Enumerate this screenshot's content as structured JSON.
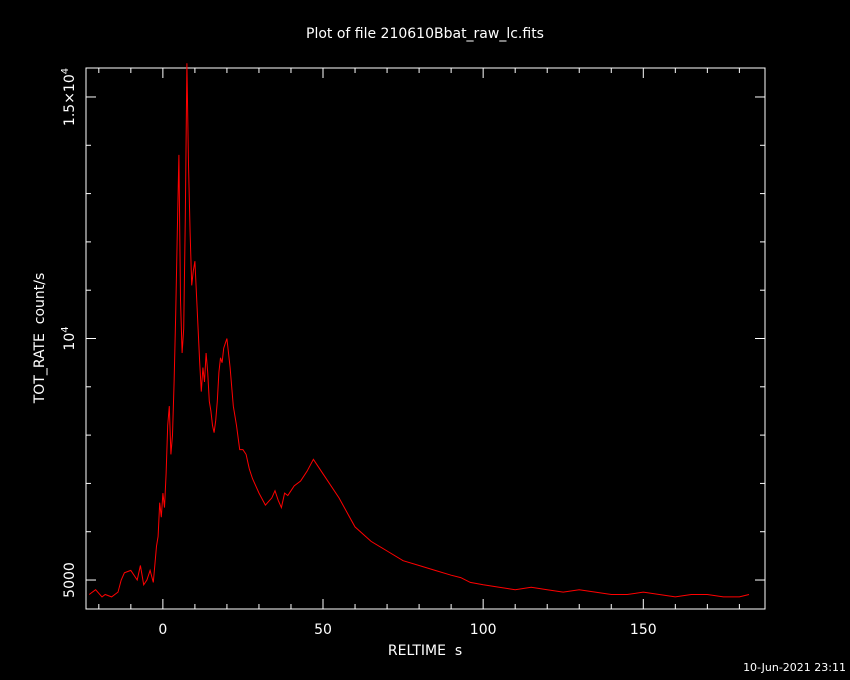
{
  "footer": {
    "timestamp": "10-Jun-2021 23:11"
  },
  "chart_data": {
    "type": "line",
    "title": "Plot of file 210610Bbat_raw_lc.fits",
    "xlabel": "RELTIME  s",
    "ylabel": "TOT_RATE  count/s",
    "xlim": [
      -24,
      188
    ],
    "ylim": [
      4400,
      15600
    ],
    "xticks": [
      0,
      50,
      100,
      150
    ],
    "xtick_labels": [
      "0",
      "50",
      "100",
      "150"
    ],
    "yticks": [
      5000,
      10000,
      15000
    ],
    "ytick_labels": [
      {
        "mantissa": "5000",
        "exp": ""
      },
      {
        "mantissa": "10",
        "exp": "4"
      },
      {
        "mantissa": "1.5×10",
        "exp": "4"
      }
    ],
    "grid": false,
    "line_color": "#ff0000",
    "axis_color": "#ffffff",
    "series": [
      {
        "x": [
          -23,
          -21,
          -19,
          -18,
          -16,
          -14,
          -13,
          -12,
          -10,
          -8,
          -7,
          -6,
          -5,
          -4,
          -3,
          -2,
          -1.5,
          -1,
          -0.5,
          0,
          0.5,
          1,
          1.5,
          2,
          2.5,
          3,
          3.5,
          4,
          4.5,
          5,
          5.5,
          6,
          6.5,
          7,
          7.5,
          8,
          8.5,
          9,
          9.5,
          10,
          10.5,
          11,
          11.5,
          12,
          12.5,
          13,
          13.5,
          14,
          14.5,
          15,
          15.5,
          16,
          16.5,
          17,
          17.5,
          18,
          18.5,
          19,
          19.5,
          20,
          20.5,
          21,
          21.5,
          22,
          23,
          24,
          25,
          26,
          27,
          28,
          30,
          32,
          34,
          35,
          36,
          37,
          38,
          39,
          41,
          43,
          45,
          47,
          50,
          55,
          60,
          65,
          70,
          75,
          80,
          85,
          90,
          93,
          96,
          100,
          105,
          110,
          115,
          120,
          125,
          130,
          135,
          140,
          145,
          150,
          155,
          160,
          165,
          170,
          175,
          180,
          183
        ],
        "y": [
          4700,
          4800,
          4650,
          4700,
          4650,
          4750,
          5000,
          5150,
          5200,
          5000,
          5300,
          4900,
          5000,
          5200,
          4950,
          5700,
          5900,
          6600,
          6300,
          6800,
          6500,
          7200,
          8200,
          8600,
          7600,
          8000,
          9100,
          10500,
          12200,
          13800,
          10800,
          9700,
          10200,
          12500,
          15700,
          13600,
          12200,
          11100,
          11400,
          11600,
          10900,
          10200,
          9500,
          8900,
          9400,
          9100,
          9700,
          9300,
          8700,
          8500,
          8200,
          8050,
          8300,
          8700,
          9300,
          9600,
          9500,
          9800,
          9900,
          10000,
          9700,
          9400,
          9000,
          8600,
          8200,
          7700,
          7700,
          7600,
          7300,
          7100,
          6800,
          6550,
          6700,
          6850,
          6650,
          6500,
          6800,
          6750,
          6950,
          7050,
          7250,
          7500,
          7200,
          6700,
          6100,
          5800,
          5600,
          5400,
          5300,
          5200,
          5100,
          5050,
          4950,
          4900,
          4850,
          4800,
          4850,
          4800,
          4750,
          4800,
          4750,
          4700,
          4700,
          4750,
          4700,
          4650,
          4700,
          4700,
          4650,
          4650,
          4700
        ]
      }
    ]
  }
}
